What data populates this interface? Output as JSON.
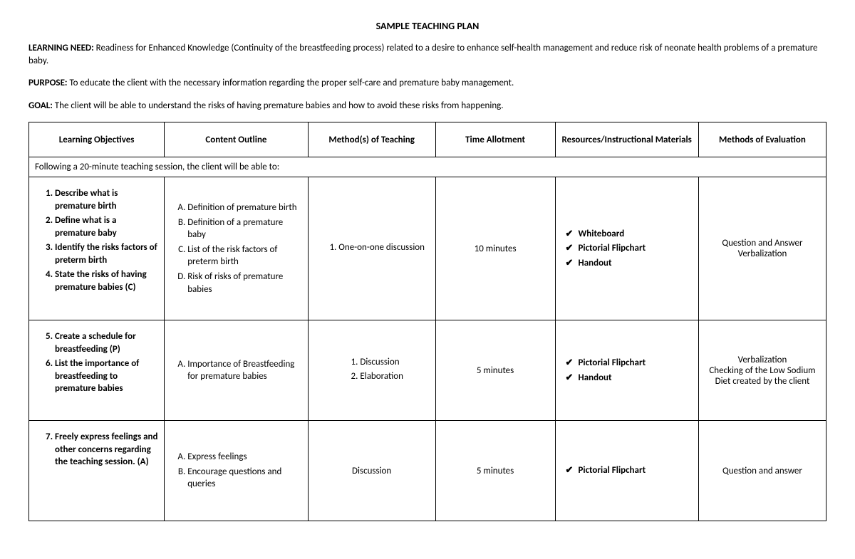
{
  "title": "SAMPLE TEACHING PLAN",
  "intro": {
    "learning_need_label": "LEARNING NEED:",
    "learning_need_text": " Readiness for Enhanced Knowledge (Continuity of the breastfeeding process) related to a desire to enhance self-health management and reduce risk of neonate health problems of a premature baby.",
    "purpose_label": "PURPOSE:",
    "purpose_text": " To educate the client with the necessary information regarding the proper self-care and premature baby management.",
    "goal_label": "GOAL:",
    "goal_text": " The client will be able to understand the risks of having premature babies and how to avoid these risks from happening."
  },
  "columns": [
    "Learning Objectives",
    "Content Outline",
    "Method(s) of Teaching",
    "Time Allotment",
    "Resources/Instructional Materials",
    "Methods of Evaluation"
  ],
  "span_row": "Following a 20-minute teaching session, the client will be able to:",
  "rows": [
    {
      "objectives": [
        "Describe what is premature birth",
        "Define what is a premature baby",
        "Identify the risks factors of preterm birth",
        "State the risks of having premature babies (C)"
      ],
      "obj_start": 1,
      "content": [
        "Definition of premature birth",
        "Definition of a premature baby",
        "List of the risk factors of preterm birth",
        "Risk of risks of premature babies"
      ],
      "methods": [
        "One-on-one discussion"
      ],
      "time": "10 minutes",
      "resources": [
        "Whiteboard",
        "Pictorial Flipchart",
        "Handout"
      ],
      "evaluation": "Question and Answer Verbalization"
    },
    {
      "objectives": [
        "Create a schedule for breastfeeding (P)",
        "List the importance of breastfeeding to premature babies"
      ],
      "obj_start": 5,
      "content": [
        "Importance of Breastfeeding for premature babies"
      ],
      "methods": [
        "Discussion",
        "Elaboration"
      ],
      "time": "5 minutes",
      "resources": [
        "Pictorial Flipchart",
        "Handout"
      ],
      "evaluation": "Verbalization\nChecking of the Low Sodium Diet created by the client"
    },
    {
      "objectives": [
        "Freely express feelings and other concerns regarding the teaching session. (A)"
      ],
      "obj_start": 7,
      "content": [
        "Express feelings",
        "Encourage questions and queries"
      ],
      "methods_text": "Discussion",
      "time": "5 minutes",
      "resources": [
        "Pictorial Flipchart"
      ],
      "evaluation": "Question and answer"
    }
  ],
  "col_widths": [
    "17%",
    "18%",
    "16%",
    "15%",
    "18%",
    "16%"
  ]
}
